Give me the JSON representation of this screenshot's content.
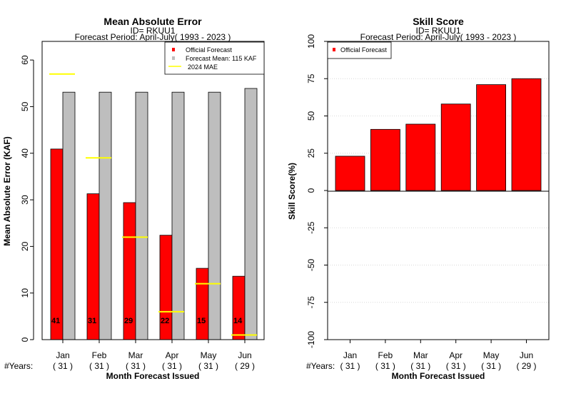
{
  "chart_data": [
    {
      "type": "bar",
      "title": "Mean Absolute Error",
      "subtitle_id": "ID= RKUU1",
      "subtitle_period": "Forecast Period: April-July( 1993 - 2023 )",
      "ylabel": "Mean Absolute Error (KAF)",
      "xlabel": "Month Forecast Issued",
      "ylim": [
        0,
        64
      ],
      "yticks": [
        "0",
        "10",
        "20",
        "30",
        "40",
        "50",
        "60"
      ],
      "categories": [
        "Jan",
        "Feb",
        "Mar",
        "Apr",
        "May",
        "Jun"
      ],
      "years_label": "#Years:",
      "years": [
        "( 31 )",
        "( 31 )",
        "( 31 )",
        "( 31 )",
        "( 31 )",
        "( 29 )"
      ],
      "series": [
        {
          "name": "Official Forecast",
          "color": "#ff0000",
          "values": [
            40.9,
            31.3,
            29.4,
            22.4,
            15.3,
            13.6
          ],
          "labels": [
            "41",
            "31",
            "29",
            "22",
            "15",
            "14"
          ]
        },
        {
          "name": "Forecast Mean: 115 KAF",
          "color": "#bebebe",
          "values": [
            53.1,
            53.1,
            53.1,
            53.1,
            53.1,
            53.9
          ]
        },
        {
          "name": "2024  MAE",
          "color": "#ffff00",
          "values": [
            57,
            39,
            22,
            6,
            12,
            1
          ]
        }
      ],
      "legend_position": "top-right",
      "grid": false
    },
    {
      "type": "bar",
      "title": "Skill Score",
      "subtitle_id": "ID= RKUU1",
      "subtitle_period": "Forecast Period: April-July( 1993 - 2023 )",
      "ylabel": "Skill Score(%)",
      "xlabel": "Month Forecast Issued",
      "ylim": [
        -100,
        100
      ],
      "yticks": [
        "-100",
        "-75",
        "-50",
        "-25",
        "0",
        "25",
        "50",
        "75",
        "100"
      ],
      "categories": [
        "Jan",
        "Feb",
        "Mar",
        "Apr",
        "May",
        "Jun"
      ],
      "years_label": "#Years:",
      "years": [
        "( 31 )",
        "( 31 )",
        "( 31 )",
        "( 31 )",
        "( 31 )",
        "( 29 )"
      ],
      "series": [
        {
          "name": "Official Forecast",
          "color": "#ff0000",
          "values": [
            23,
            41,
            44.5,
            58,
            71,
            75
          ]
        }
      ],
      "legend_position": "top-left",
      "grid": true
    }
  ]
}
